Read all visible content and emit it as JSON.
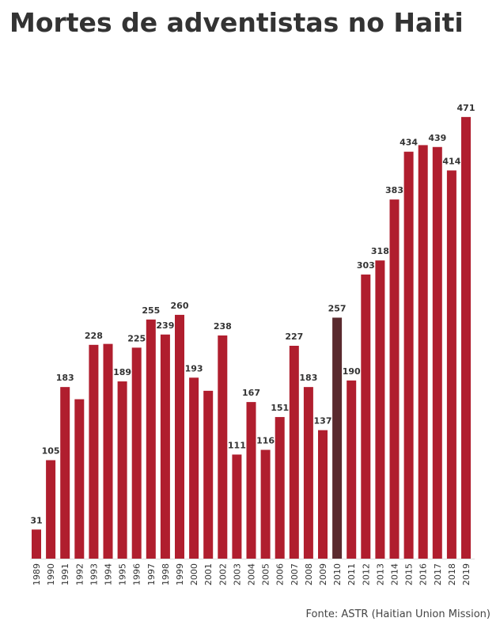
{
  "chart_data": {
    "type": "bar",
    "title": "Mortes de adventistas no Haiti",
    "categories": [
      "1989",
      "1990",
      "1991",
      "1992",
      "1993",
      "1994",
      "1995",
      "1996",
      "1997",
      "1998",
      "1999",
      "2000",
      "2001",
      "2002",
      "2003",
      "2004",
      "2005",
      "2006",
      "2007",
      "2008",
      "2009",
      "2010",
      "2011",
      "2012",
      "2013",
      "2014",
      "2015",
      "2016",
      "2017",
      "2018",
      "2019"
    ],
    "values": [
      31,
      105,
      183,
      170,
      228,
      229,
      189,
      225,
      255,
      239,
      260,
      193,
      179,
      238,
      111,
      167,
      116,
      151,
      227,
      183,
      137,
      257,
      190,
      303,
      318,
      383,
      434,
      441,
      439,
      414,
      471
    ],
    "value_labels": [
      "31",
      "105",
      "183",
      null,
      "228",
      null,
      "189",
      "225",
      "255",
      "239",
      "260",
      "193",
      null,
      "238",
      "111",
      "167",
      "116",
      "151",
      "227",
      "183",
      "137",
      "257",
      "190",
      "303",
      "318",
      "383",
      "434",
      null,
      "439",
      "414",
      "471"
    ],
    "colors": [
      "#b01e2e",
      "#b01e2e",
      "#b01e2e",
      "#b01e2e",
      "#b01e2e",
      "#b01e2e",
      "#b01e2e",
      "#b01e2e",
      "#b01e2e",
      "#b01e2e",
      "#b01e2e",
      "#b01e2e",
      "#b01e2e",
      "#b01e2e",
      "#b01e2e",
      "#b01e2e",
      "#b01e2e",
      "#b01e2e",
      "#b01e2e",
      "#b01e2e",
      "#b01e2e",
      "#5a2a2e",
      "#b01e2e",
      "#b01e2e",
      "#b01e2e",
      "#b01e2e",
      "#b01e2e",
      "#b01e2e",
      "#b01e2e",
      "#b01e2e",
      "#b01e2e"
    ],
    "source": "Fonte: ASTR (Haitian Union Mission)"
  }
}
